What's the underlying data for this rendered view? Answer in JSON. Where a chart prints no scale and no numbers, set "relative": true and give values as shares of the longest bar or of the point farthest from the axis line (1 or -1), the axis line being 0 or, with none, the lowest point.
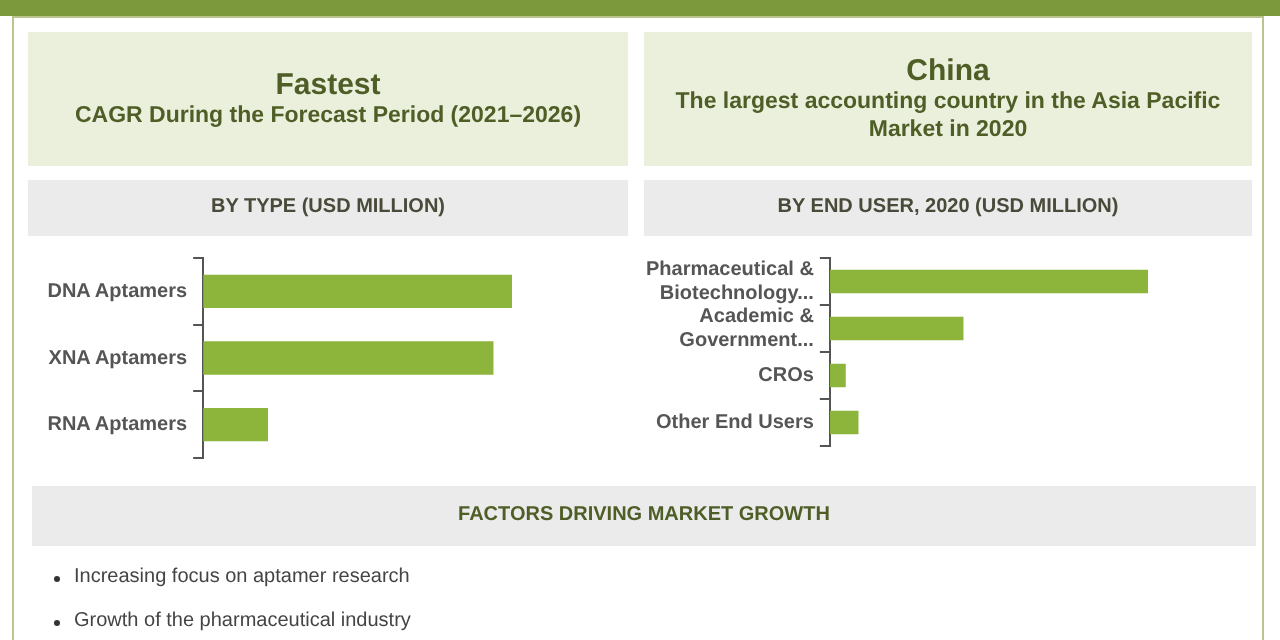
{
  "chart_data": [
    {
      "type": "other",
      "title": "Fastest",
      "subtitle": "CAGR During the Forecast Period (2021–2026)"
    },
    {
      "type": "other",
      "title": "China",
      "subtitle": "The largest accounting country in the Asia Pacific Market in 2020"
    },
    {
      "type": "bar",
      "orientation": "horizontal",
      "relative": true,
      "title": "BY TYPE (USD MILLION)",
      "categories": [
        "DNA Aptamers",
        "XNA Aptamers",
        "RNA Aptamers"
      ],
      "color": "#8db53c",
      "values": [
        1,
        0.94,
        0.21
      ]
    },
    {
      "type": "bar",
      "orientation": "horizontal",
      "relative": true,
      "title": "BY END USER, 2020 (USD MILLION)",
      "categories": [
        "Pharmaceutical & Biotechnology...",
        "Academic & Government...",
        "CROs",
        "Other End Users"
      ],
      "color": "#8db53c",
      "values": [
        1,
        0.42,
        0.05,
        0.09
      ]
    },
    {
      "type": "other",
      "title": "FACTORS DRIVING MARKET GROWTH",
      "annotations": [
        "Increasing  focus on aptamer research",
        "Growth of the pharmaceutical  industry"
      ]
    }
  ]
}
